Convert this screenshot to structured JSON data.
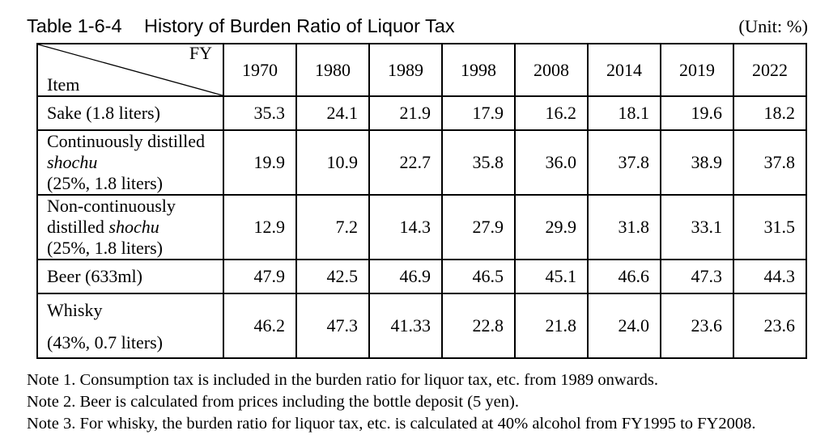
{
  "title": {
    "number": "Table 1-6-4",
    "text": "History of Burden Ratio of Liquor Tax",
    "unit": "(Unit: %)"
  },
  "table": {
    "corner": {
      "fy": "FY",
      "item": "Item"
    },
    "years": [
      "1970",
      "1980",
      "1989",
      "1998",
      "2008",
      "2014",
      "2019",
      "2022"
    ],
    "rows": [
      {
        "label": [
          [
            "Sake (1.8 liters)"
          ]
        ],
        "values": [
          "35.3",
          "24.1",
          "21.9",
          "17.9",
          "16.2",
          "18.1",
          "19.6",
          "18.2"
        ]
      },
      {
        "label": [
          [
            "Continuously distilled"
          ],
          [
            "shochu"
          ],
          [
            "(25%, 1.8 liters)"
          ]
        ],
        "values": [
          "19.9",
          "10.9",
          "22.7",
          "35.8",
          "36.0",
          "37.8",
          "38.9",
          "37.8"
        ]
      },
      {
        "label": [
          [
            "Non-continuously"
          ],
          [
            "distilled ",
            "shochu"
          ],
          [
            "(25%, 1.8 liters)"
          ]
        ],
        "values": [
          "12.9",
          "7.2",
          "14.3",
          "27.9",
          "29.9",
          "31.8",
          "33.1",
          "31.5"
        ]
      },
      {
        "label": [
          [
            "Beer (633ml)"
          ]
        ],
        "values": [
          "47.9",
          "42.5",
          "46.9",
          "46.5",
          "45.1",
          "46.6",
          "47.3",
          "44.3"
        ]
      },
      {
        "label": [
          [
            "Whisky"
          ],
          [
            "(43%, 0.7 liters)"
          ]
        ],
        "values": [
          "46.2",
          "47.3",
          "41.33",
          "22.8",
          "21.8",
          "24.0",
          "23.6",
          "23.6"
        ]
      }
    ]
  },
  "notes": [
    "Note 1. Consumption tax is included in the burden ratio for liquor tax, etc. from 1989 onwards.",
    "Note 2. Beer is calculated from prices including the bottle deposit (5 yen).",
    "Note 3. For whisky, the burden ratio for liquor tax, etc. is calculated at 40% alcohol from FY1995 to FY2008."
  ]
}
